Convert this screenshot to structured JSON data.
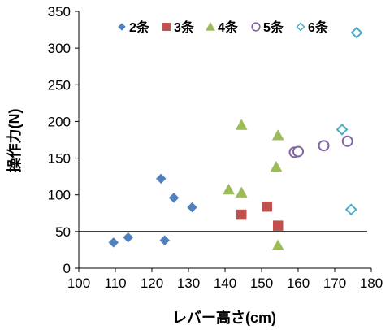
{
  "chart_data": {
    "type": "scatter",
    "xlabel": "レバー高さ(cm)",
    "ylabel": "操作力(N)",
    "xlim": [
      100,
      180
    ],
    "ylim": [
      0,
      350
    ],
    "x_ticks": [
      100,
      110,
      120,
      130,
      140,
      150,
      160,
      170,
      180
    ],
    "y_ticks": [
      0,
      50,
      100,
      150,
      200,
      250,
      300,
      350
    ],
    "grid": false,
    "legend_position": "top",
    "reference_line": {
      "y": 50
    },
    "series": [
      {
        "name": "2条",
        "marker": "diamond-filled",
        "color": "#4f81bd",
        "points": [
          [
            109.5,
            35
          ],
          [
            113.5,
            42
          ],
          [
            122.5,
            122
          ],
          [
            123.5,
            38
          ],
          [
            126,
            96
          ],
          [
            131,
            83
          ]
        ]
      },
      {
        "name": "3条",
        "marker": "square-filled",
        "color": "#c0504d",
        "points": [
          [
            144.5,
            73
          ],
          [
            151.5,
            84
          ],
          [
            154.5,
            58
          ]
        ]
      },
      {
        "name": "4条",
        "marker": "triangle-filled",
        "color": "#9bbb59",
        "points": [
          [
            141,
            107
          ],
          [
            144.5,
            103
          ],
          [
            144.5,
            195
          ],
          [
            154,
            138
          ],
          [
            154.5,
            181
          ],
          [
            154.5,
            31
          ]
        ]
      },
      {
        "name": "5条",
        "marker": "circle-open",
        "color": "#8064a2",
        "points": [
          [
            159,
            158
          ],
          [
            160,
            159
          ],
          [
            167,
            167
          ],
          [
            173.5,
            173
          ]
        ]
      },
      {
        "name": "6条",
        "marker": "diamond-open",
        "color": "#4bacc6",
        "points": [
          [
            172,
            189
          ],
          [
            174.5,
            80
          ],
          [
            176,
            321
          ]
        ]
      }
    ]
  }
}
